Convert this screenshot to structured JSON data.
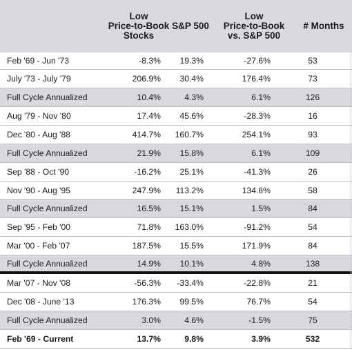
{
  "headers": [
    "",
    "Low\nPrice-to-Book\nStocks",
    "S&P 500",
    "Low\nPrice-to-Book\nvs. S&P 500",
    "# Months"
  ],
  "rows": [
    {
      "period": "Feb '69 - Jun '73",
      "low_pb": "-8.3%",
      "sp500": "19.3%",
      "vs_sp": "-27.6%",
      "months": "53"
    },
    {
      "period": "July '73 - July '79",
      "low_pb": "206.9%",
      "sp500": "30.4%",
      "vs_sp": "176.4%",
      "months": "73"
    },
    {
      "period": "Full Cycle Annualized",
      "low_pb": "10.4%",
      "sp500": "4.3%",
      "vs_sp": "6.1%",
      "months": "126"
    },
    {
      "period": "Aug '79 - Nov '80",
      "low_pb": "17.4%",
      "sp500": "45.6%",
      "vs_sp": "-28.3%",
      "months": "16"
    },
    {
      "period": "Dec '80 - Aug '88",
      "low_pb": "414.7%",
      "sp500": "160.7%",
      "vs_sp": "254.1%",
      "months": "93"
    },
    {
      "period": "Full Cycle Annualized",
      "low_pb": "21.9%",
      "sp500": "15.8%",
      "vs_sp": "6.1%",
      "months": "109"
    },
    {
      "period": "Sep '88 - Oct '90",
      "low_pb": "-16.2%",
      "sp500": "25.1%",
      "vs_sp": "-41.3%",
      "months": "26"
    },
    {
      "period": "Nov '90 - Aug '95",
      "low_pb": "247.9%",
      "sp500": "113.2%",
      "vs_sp": "134.6%",
      "months": "58"
    },
    {
      "period": "Full Cycle Annualized",
      "low_pb": "16.5%",
      "sp500": "15.1%",
      "vs_sp": "1.5%",
      "months": "84"
    },
    {
      "period": "Sep '95 - Feb '00",
      "low_pb": "71.8%",
      "sp500": "163.0%",
      "vs_sp": "-91.2%",
      "months": "54"
    },
    {
      "period": "Mar '00 - Feb '07",
      "low_pb": "187.5%",
      "sp500": "15.5%",
      "vs_sp": "171.9%",
      "months": "84"
    },
    {
      "period": "Full Cycle Annualized",
      "low_pb": "14.9%",
      "sp500": "10.1%",
      "vs_sp": "4.8%",
      "months": "138"
    },
    {
      "period": "Mar '07 - Nov '08",
      "low_pb": "-56.3%",
      "sp500": "-33.4%",
      "vs_sp": "-22.8%",
      "months": "21"
    },
    {
      "period": "Dec '08 - June '13",
      "low_pb": "176.3%",
      "sp500": "99.5%",
      "vs_sp": "76.7%",
      "months": "54"
    },
    {
      "period": "Full Cycle Annualized",
      "low_pb": "3.0%",
      "sp500": "4.6%",
      "vs_sp": "-1.5%",
      "months": "75"
    },
    {
      "period": "Feb '69 - Current",
      "low_pb": "13.7%",
      "sp500": "9.8%",
      "vs_sp": "3.9%",
      "months": "532"
    }
  ],
  "colors": {
    "shaded": "#d8d9de",
    "rule": "#111111",
    "text": "#1a1a1a"
  }
}
